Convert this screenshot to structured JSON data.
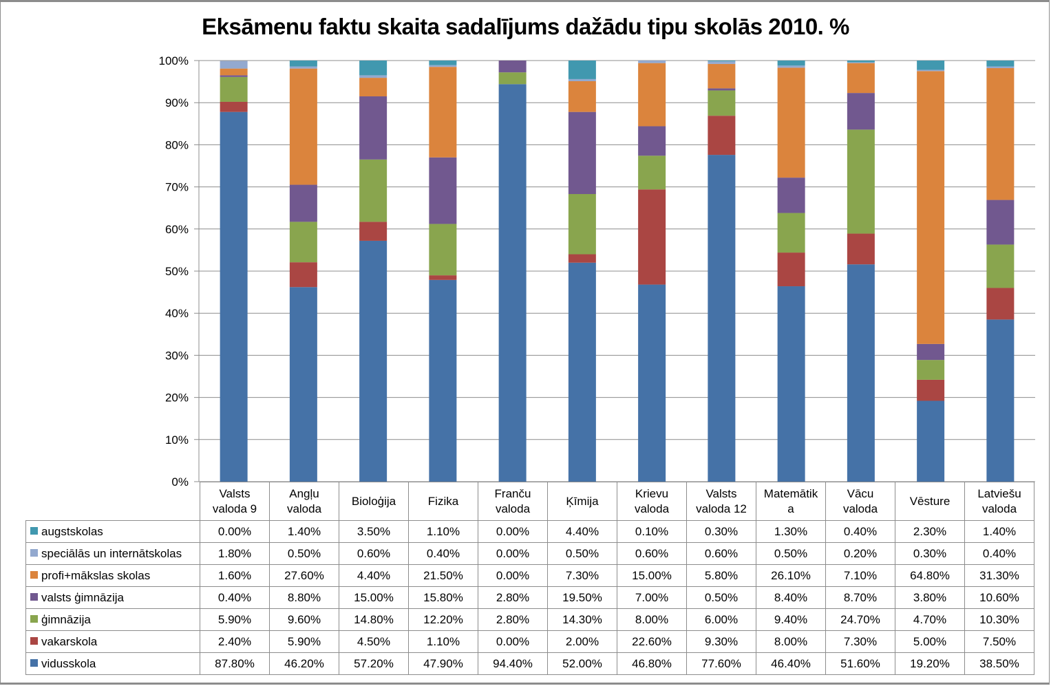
{
  "chart_data": {
    "type": "bar",
    "stacked": true,
    "title": "Eksāmenu faktu skaita sadalījums dažādu tipu skolās 2010. %",
    "xlabel": "",
    "ylabel": "",
    "ylim": [
      0,
      100
    ],
    "grid": true,
    "legend": "data-table-left",
    "yticks": [
      "0%",
      "10%",
      "20%",
      "30%",
      "40%",
      "50%",
      "60%",
      "70%",
      "80%",
      "90%",
      "100%"
    ],
    "categories": [
      [
        "Valsts",
        "valoda 9"
      ],
      [
        "Angļu",
        "valoda"
      ],
      [
        "Bioloģija"
      ],
      [
        "Fizika"
      ],
      [
        "Franču",
        "valoda"
      ],
      [
        "Ķīmija"
      ],
      [
        "Krievu",
        "valoda"
      ],
      [
        "Valsts",
        "valoda 12"
      ],
      [
        "Matemātik",
        "a"
      ],
      [
        "Vācu",
        "valoda"
      ],
      [
        "Vēsture"
      ],
      [
        "Latviešu",
        "valoda"
      ]
    ],
    "series": [
      {
        "name": "vidusskola",
        "color": "#4572a7",
        "values": [
          87.8,
          46.2,
          57.2,
          47.9,
          94.4,
          52.0,
          46.8,
          77.6,
          46.4,
          51.6,
          19.2,
          38.5
        ],
        "labels": [
          "87.80%",
          "46.20%",
          "57.20%",
          "47.90%",
          "94.40%",
          "52.00%",
          "46.80%",
          "77.60%",
          "46.40%",
          "51.60%",
          "19.20%",
          "38.50%"
        ]
      },
      {
        "name": "vakarskola",
        "color": "#aa4643",
        "values": [
          2.4,
          5.9,
          4.5,
          1.1,
          0.0,
          2.0,
          22.6,
          9.3,
          8.0,
          7.3,
          5.0,
          7.5
        ],
        "labels": [
          "2.40%",
          "5.90%",
          "4.50%",
          "1.10%",
          "0.00%",
          "2.00%",
          "22.60%",
          "9.30%",
          "8.00%",
          "7.30%",
          "5.00%",
          "7.50%"
        ]
      },
      {
        "name": "ģimnāzija",
        "color": "#89a54e",
        "values": [
          5.9,
          9.6,
          14.8,
          12.2,
          2.8,
          14.3,
          8.0,
          6.0,
          9.4,
          24.7,
          4.7,
          10.3
        ],
        "labels": [
          "5.90%",
          "9.60%",
          "14.80%",
          "12.20%",
          "2.80%",
          "14.30%",
          "8.00%",
          "6.00%",
          "9.40%",
          "24.70%",
          "4.70%",
          "10.30%"
        ]
      },
      {
        "name": "valsts ģimnāzija",
        "color": "#71588f",
        "values": [
          0.4,
          8.8,
          15.0,
          15.8,
          2.8,
          19.5,
          7.0,
          0.5,
          8.4,
          8.7,
          3.8,
          10.6
        ],
        "labels": [
          "0.40%",
          "8.80%",
          "15.00%",
          "15.80%",
          "2.80%",
          "19.50%",
          "7.00%",
          "0.50%",
          "8.40%",
          "8.70%",
          "3.80%",
          "10.60%"
        ]
      },
      {
        "name": "profi+mākslas skolas",
        "color": "#db843d",
        "values": [
          1.6,
          27.6,
          4.4,
          21.5,
          0.0,
          7.3,
          15.0,
          5.8,
          26.1,
          7.1,
          64.8,
          31.3
        ],
        "labels": [
          "1.60%",
          "27.60%",
          "4.40%",
          "21.50%",
          "0.00%",
          "7.30%",
          "15.00%",
          "5.80%",
          "26.10%",
          "7.10%",
          "64.80%",
          "31.30%"
        ]
      },
      {
        "name": "speciālās un internātskolas",
        "color": "#93a9cf",
        "values": [
          1.8,
          0.5,
          0.6,
          0.4,
          0.0,
          0.5,
          0.6,
          0.6,
          0.5,
          0.2,
          0.3,
          0.4
        ],
        "labels": [
          "1.80%",
          "0.50%",
          "0.60%",
          "0.40%",
          "0.00%",
          "0.50%",
          "0.60%",
          "0.60%",
          "0.50%",
          "0.20%",
          "0.30%",
          "0.40%"
        ]
      },
      {
        "name": "augstskolas",
        "color": "#4198af",
        "values": [
          0.0,
          1.4,
          3.5,
          1.1,
          0.0,
          4.4,
          0.1,
          0.3,
          1.3,
          0.4,
          2.3,
          1.4
        ],
        "labels": [
          "0.00%",
          "1.40%",
          "3.50%",
          "1.10%",
          "0.00%",
          "4.40%",
          "0.10%",
          "0.30%",
          "1.30%",
          "0.40%",
          "2.30%",
          "1.40%"
        ]
      }
    ],
    "table_row_order": [
      "augstskolas",
      "speciālās un internātskolas",
      "profi+mākslas skolas",
      "valsts ģimnāzija",
      "ģimnāzija",
      "vakarskola",
      "vidusskola"
    ]
  }
}
